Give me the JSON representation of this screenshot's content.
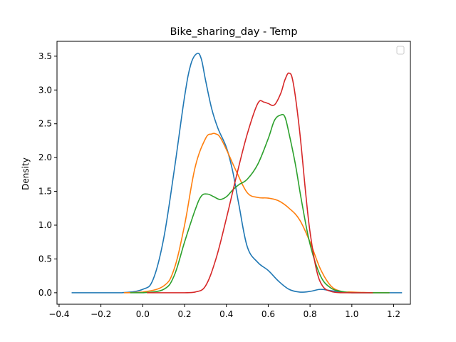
{
  "chart_data": {
    "type": "line",
    "title": "Bike_sharing_day - Temp",
    "xlabel": "",
    "ylabel": "Density",
    "xlim": [
      -0.41,
      1.28
    ],
    "ylim": [
      -0.17,
      3.72
    ],
    "xticks": [
      -0.4,
      -0.2,
      0.0,
      0.2,
      0.4,
      0.6,
      0.8,
      1.0,
      1.2
    ],
    "xtick_labels": [
      "−0.4",
      "−0.2",
      "0.0",
      "0.2",
      "0.4",
      "0.6",
      "0.8",
      "1.0",
      "1.2"
    ],
    "yticks": [
      0.0,
      0.5,
      1.0,
      1.5,
      2.0,
      2.5,
      3.0,
      3.5
    ],
    "ytick_labels": [
      "0.0",
      "0.5",
      "1.0",
      "1.5",
      "2.0",
      "2.5",
      "3.0",
      "3.5"
    ],
    "grid": false,
    "legend": {
      "placement": "top-right",
      "entries": []
    },
    "series": [
      {
        "color": "#1f77b4",
        "x": [
          -0.34,
          -0.2,
          -0.1,
          0.0,
          0.05,
          0.1,
          0.15,
          0.2,
          0.23,
          0.26,
          0.28,
          0.3,
          0.33,
          0.36,
          0.4,
          0.43,
          0.46,
          0.5,
          0.55,
          0.6,
          0.65,
          0.7,
          0.75,
          0.8,
          0.85,
          0.9,
          0.95,
          1.0,
          1.1,
          1.24
        ],
        "y": [
          0.0,
          0.0,
          0.0,
          0.05,
          0.2,
          0.8,
          1.8,
          2.9,
          3.38,
          3.54,
          3.46,
          3.15,
          2.72,
          2.43,
          2.15,
          1.8,
          1.3,
          0.68,
          0.45,
          0.33,
          0.17,
          0.05,
          0.01,
          0.02,
          0.05,
          0.03,
          0.01,
          0.0,
          0.0,
          0.0
        ]
      },
      {
        "color": "#ff7f0e",
        "x": [
          -0.09,
          0.0,
          0.1,
          0.15,
          0.2,
          0.25,
          0.3,
          0.33,
          0.35,
          0.37,
          0.4,
          0.45,
          0.5,
          0.55,
          0.6,
          0.65,
          0.7,
          0.75,
          0.8,
          0.85,
          0.9,
          0.95,
          1.0,
          1.1,
          1.18
        ],
        "y": [
          0.0,
          0.01,
          0.1,
          0.35,
          1.0,
          1.85,
          2.28,
          2.35,
          2.35,
          2.3,
          2.12,
          1.78,
          1.48,
          1.41,
          1.4,
          1.36,
          1.25,
          1.08,
          0.75,
          0.35,
          0.1,
          0.02,
          0.01,
          0.0,
          0.0
        ]
      },
      {
        "color": "#2ca02c",
        "x": [
          -0.06,
          0.0,
          0.1,
          0.15,
          0.2,
          0.25,
          0.28,
          0.31,
          0.34,
          0.37,
          0.4,
          0.43,
          0.46,
          0.5,
          0.55,
          0.6,
          0.63,
          0.66,
          0.68,
          0.7,
          0.73,
          0.76,
          0.8,
          0.85,
          0.9,
          0.95,
          1.0,
          1.1,
          1.18
        ],
        "y": [
          0.0,
          0.0,
          0.05,
          0.25,
          0.75,
          1.22,
          1.43,
          1.46,
          1.42,
          1.38,
          1.42,
          1.52,
          1.6,
          1.68,
          1.9,
          2.28,
          2.55,
          2.63,
          2.6,
          2.35,
          1.9,
          1.35,
          0.72,
          0.25,
          0.07,
          0.02,
          0.0,
          0.0,
          0.0
        ]
      },
      {
        "color": "#d62728",
        "x": [
          0.02,
          0.1,
          0.2,
          0.25,
          0.3,
          0.35,
          0.4,
          0.45,
          0.5,
          0.55,
          0.58,
          0.6,
          0.63,
          0.66,
          0.68,
          0.7,
          0.72,
          0.75,
          0.78,
          0.8,
          0.83,
          0.86,
          0.9,
          0.95,
          1.0,
          1.1
        ],
        "y": [
          0.0,
          0.0,
          0.0,
          0.01,
          0.1,
          0.5,
          1.1,
          1.75,
          2.35,
          2.8,
          2.82,
          2.8,
          2.78,
          2.95,
          3.15,
          3.25,
          3.1,
          2.4,
          1.45,
          0.9,
          0.35,
          0.1,
          0.02,
          0.0,
          0.0,
          0.0
        ]
      }
    ]
  }
}
